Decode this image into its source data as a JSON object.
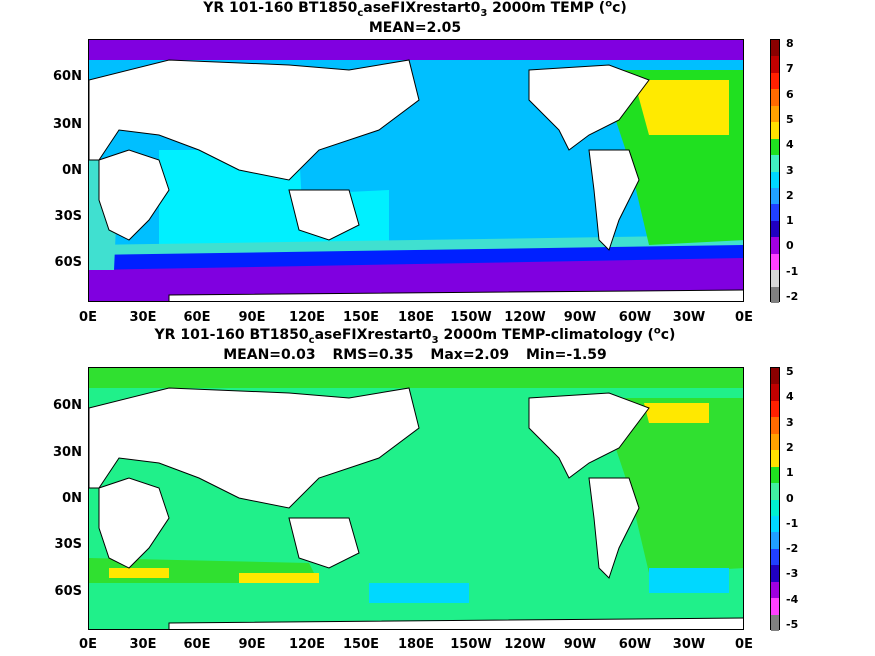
{
  "colors": {
    "ocean_top": "#00bfff",
    "ocean_top_warm": "#00f0ff",
    "ocean_top_mid": "#40e0d0",
    "ocean_top_cold": "#0020ff",
    "ocean_top_coldest": "#8000e0",
    "ocean_top_atl": "#20e020",
    "ocean_top_atl_warm": "#ffea00",
    "ocean_bot": "#20f08a",
    "ocean_bot_pos": "#30e030",
    "ocean_bot_warm": "#ffe800",
    "ocean_bot_neg": "#00d8ff",
    "land": "#ffffff"
  },
  "panel_top": {
    "title_main": "YR 101-160 BT1850",
    "title_sub": "c",
    "title_mid": "aseFIXrestart0",
    "title_sub2": "3",
    "title_end": " 2000m TEMP (",
    "title_sup": "o",
    "title_unit": "c)",
    "stats": [
      "MEAN=2.05"
    ],
    "colorbar_labels": [
      "8",
      "7",
      "6",
      "5",
      "4",
      "3",
      "2",
      "1",
      "0",
      "-1",
      "-2"
    ],
    "colorbar_colors": [
      "#8b0000",
      "#c00000",
      "#ff2000",
      "#ff6a00",
      "#ffa000",
      "#ffe000",
      "#20e020",
      "#40f0c0",
      "#00d8ff",
      "#20a0ff",
      "#2040ff",
      "#2000c0",
      "#a000e0",
      "#ff40ff",
      "#d8d8d8",
      "#808080"
    ]
  },
  "panel_bot": {
    "title_main": "YR 101-160 BT1850",
    "title_sub": "c",
    "title_mid": "aseFIXrestart0",
    "title_sub2": "3",
    "title_end": " 2000m TEMP-climatology (",
    "title_sup": "o",
    "title_unit": "c)",
    "stats": [
      "MEAN=0.03",
      "RMS=0.35",
      "Max=2.09",
      "Min=-1.59"
    ],
    "colorbar_labels": [
      "5",
      "4",
      "3",
      "2",
      "1",
      "0",
      "-1",
      "-2",
      "-3",
      "-4",
      "-5"
    ],
    "colorbar_colors": [
      "#8b0000",
      "#c00000",
      "#ff2000",
      "#ff6a00",
      "#ffa000",
      "#ffe000",
      "#20e020",
      "#40f0a0",
      "#00f0d0",
      "#00d8ff",
      "#20a0ff",
      "#2040ff",
      "#2000c0",
      "#a000e0",
      "#ff40ff",
      "#808080"
    ]
  },
  "axes": {
    "lat_labels": [
      "60N",
      "30N",
      "0N",
      "30S",
      "60S"
    ],
    "lon_labels": [
      "0E",
      "30E",
      "60E",
      "90E",
      "120E",
      "150E",
      "180E",
      "150W",
      "120W",
      "90W",
      "60W",
      "30W",
      "0E"
    ]
  }
}
